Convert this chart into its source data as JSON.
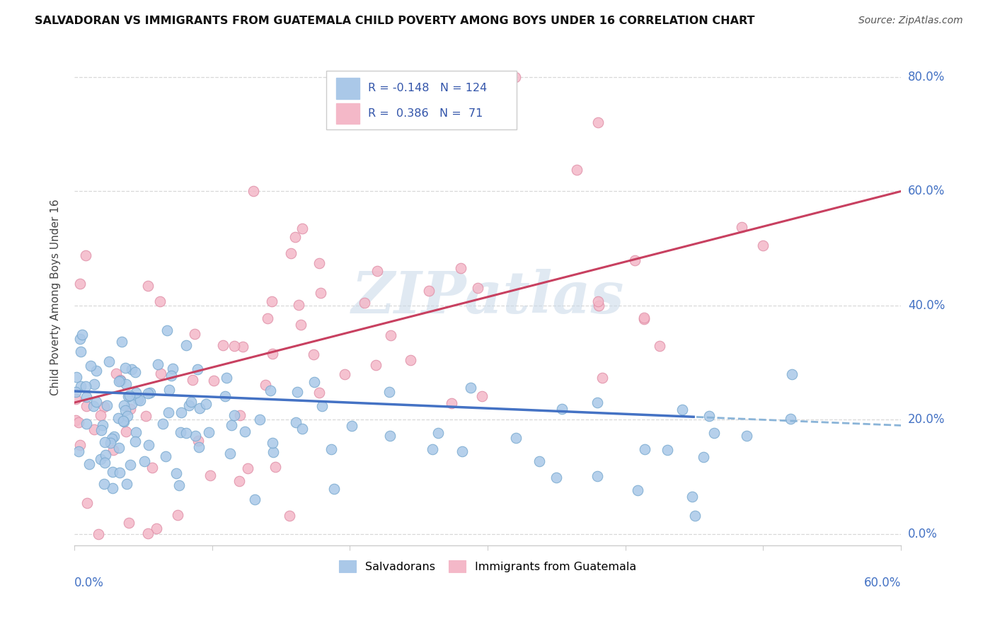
{
  "title": "SALVADORAN VS IMMIGRANTS FROM GUATEMALA CHILD POVERTY AMONG BOYS UNDER 16 CORRELATION CHART",
  "source": "Source: ZipAtlas.com",
  "ylabel": "Child Poverty Among Boys Under 16",
  "ytick_labels": [
    "0.0%",
    "20.0%",
    "40.0%",
    "60.0%",
    "80.0%"
  ],
  "watermark": "ZIPatlas",
  "legend_entries": [
    {
      "label": "Salvadorans",
      "color": "#a8c4e0"
    },
    {
      "label": "Immigrants from Guatemala",
      "color": "#f4b8c8"
    }
  ],
  "series_blue": {
    "R": -0.148,
    "N": 124,
    "color": "#aac8e8",
    "edge_color": "#7aaad0",
    "line_color": "#4472c4",
    "line_color_dash": "#8ab4d8"
  },
  "series_pink": {
    "R": 0.386,
    "N": 71,
    "color": "#f4b8c8",
    "edge_color": "#e090a8",
    "line_color": "#c84060"
  },
  "xlim": [
    0.0,
    0.6
  ],
  "ylim": [
    -0.02,
    0.85
  ],
  "x_ticks": [
    0.0,
    0.1,
    0.2,
    0.3,
    0.4,
    0.5,
    0.6
  ],
  "y_ticks": [
    0.0,
    0.2,
    0.4,
    0.6,
    0.8
  ],
  "background_color": "#ffffff",
  "grid_color": "#d8d8d8",
  "blue_line_solid_end": 0.45,
  "legend_R_blue": "R = -0.148",
  "legend_N_blue": "N = 124",
  "legend_R_pink": "R =  0.386",
  "legend_N_pink": "N =  71"
}
